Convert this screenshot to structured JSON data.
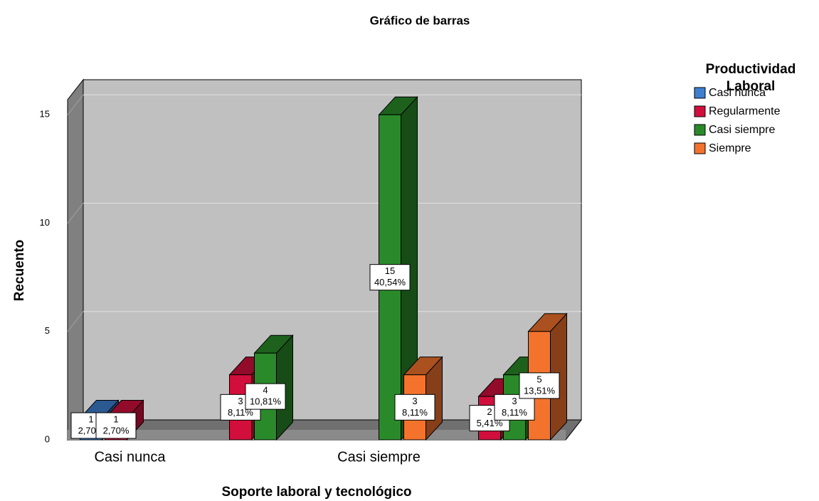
{
  "chart_data": {
    "type": "bar3d",
    "title": "Gráfico de barras",
    "x_label": "Soporte laboral y tecnológico",
    "y_label": "Recuento",
    "legend_title": "Productividad Laboral",
    "legend": "right",
    "grid": true,
    "categories": [
      "Casi nunca",
      null,
      "Casi siempre",
      null
    ],
    "series": [
      {
        "name": "Casi nunca",
        "color": "#3e7fd0",
        "values": [
          1,
          null,
          null,
          null
        ],
        "percent_labels": [
          "2,70%",
          null,
          null,
          null
        ]
      },
      {
        "name": "Regularmente",
        "color": "#d20f3c",
        "values": [
          1,
          3,
          null,
          2
        ],
        "percent_labels": [
          "2,70%",
          "8,11%",
          null,
          "5,41%"
        ]
      },
      {
        "name": "Casi siempre",
        "color": "#2a8a2a",
        "values": [
          null,
          4,
          15,
          3
        ],
        "percent_labels": [
          null,
          "10,81%",
          "40,54%",
          "8,11%"
        ]
      },
      {
        "name": "Siempre",
        "color": "#f4732c",
        "values": [
          null,
          null,
          3,
          5
        ],
        "percent_labels": [
          null,
          null,
          "8,11%",
          "13,51%"
        ]
      }
    ],
    "ylim": [
      0,
      15.7
    ],
    "yticks": [
      0,
      5,
      10,
      15
    ]
  }
}
